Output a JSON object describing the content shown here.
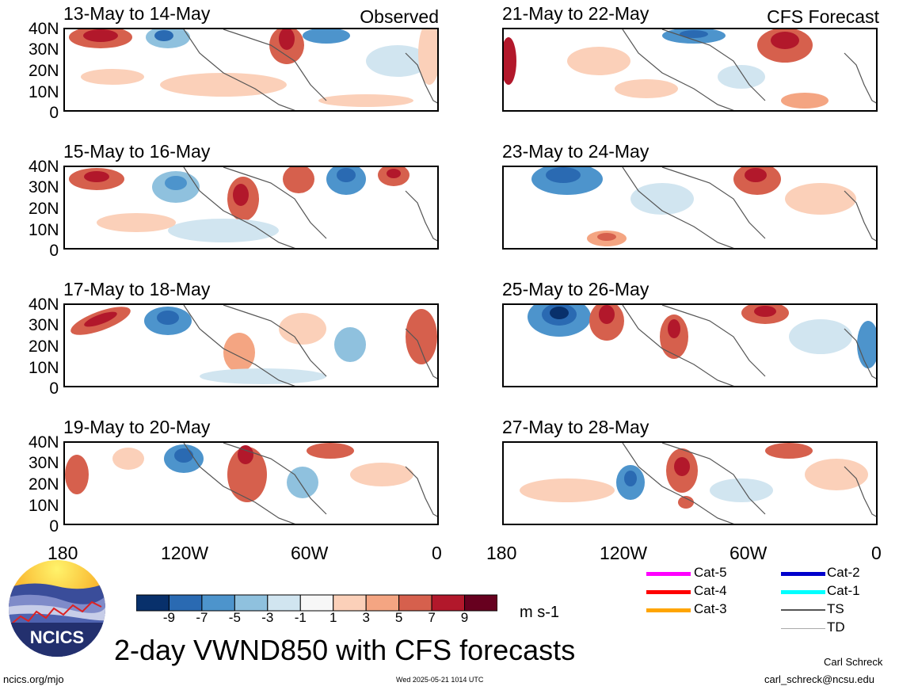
{
  "panels": [
    {
      "title": "13-May to 14-May",
      "tag": "Observed"
    },
    {
      "title": "21-May to 22-May",
      "tag": "CFS Forecast"
    },
    {
      "title": "15-May to 16-May",
      "tag": ""
    },
    {
      "title": "23-May to 24-May",
      "tag": ""
    },
    {
      "title": "17-May to 18-May",
      "tag": ""
    },
    {
      "title": "25-May to 26-May",
      "tag": ""
    },
    {
      "title": "19-May to 20-May",
      "tag": ""
    },
    {
      "title": "27-May to 28-May",
      "tag": ""
    }
  ],
  "lat_labels": [
    "40N",
    "30N",
    "20N",
    "10N",
    "0"
  ],
  "lon_labels": [
    "180",
    "120W",
    "60W",
    "0"
  ],
  "colorbar": {
    "labels": [
      "-9",
      "-7",
      "-5",
      "-3",
      "-1",
      "1",
      "3",
      "5",
      "7",
      "9"
    ],
    "colors": [
      "#08306b",
      "#2a6ab2",
      "#4d94cc",
      "#8fc1de",
      "#d1e5f0",
      "#f7f7f7",
      "#fbd0b9",
      "#f4a582",
      "#d6604d",
      "#b2182b",
      "#67001f"
    ],
    "units": "m s-1"
  },
  "title": "2-day VWND850 with CFS forecasts",
  "legend": [
    {
      "label": "Cat-5",
      "color": "#ff00ff"
    },
    {
      "label": "Cat-4",
      "color": "#ff0000"
    },
    {
      "label": "Cat-3",
      "color": "#ffa500"
    },
    {
      "label": "Cat-2",
      "color": "#0000cc"
    },
    {
      "label": "Cat-1",
      "color": "#00ffff"
    },
    {
      "label": "TS",
      "color": "#555555"
    },
    {
      "label": "TD",
      "color": "#aaaaaa"
    }
  ],
  "logo_text": "NCICS",
  "footer": {
    "url": "ncics.org/mjo",
    "timestamp": "Wed 2025-05-21 1014 UTC",
    "author": "Carl Schreck",
    "email": "carl_schreck@ncsu.edu"
  }
}
